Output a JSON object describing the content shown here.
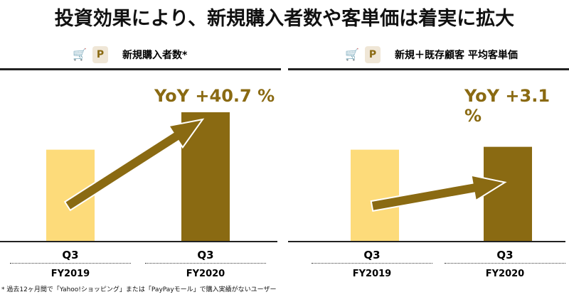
{
  "title": "投資効果により、新規購入者数や客単価は着実に拡大",
  "footnote": "* 過去12ヶ月間で「Yahoo!ショッピング」または「PayPayモール」で購入実績がないユーザー",
  "colors": {
    "fy2019": "#fddb7a",
    "fy2020": "#8a6a12",
    "arrow": "#8a6a12"
  },
  "chart_data": [
    {
      "type": "bar",
      "title": "新規購入者数*",
      "categories": [
        "Q3 FY2019",
        "Q3 FY2020"
      ],
      "quarter_labels": [
        "Q3",
        "Q3"
      ],
      "year_labels": [
        "FY2019",
        "FY2020"
      ],
      "values": [
        100,
        140.7
      ],
      "annotation": "YoY +40.7 %",
      "ylim": [
        0,
        150
      ]
    },
    {
      "type": "bar",
      "title": "新規＋既存顧客 平均客単価",
      "categories": [
        "Q3 FY2019",
        "Q3 FY2020"
      ],
      "quarter_labels": [
        "Q3",
        "Q3"
      ],
      "year_labels": [
        "FY2019",
        "FY2020"
      ],
      "values": [
        100,
        103.1
      ],
      "annotation": "YoY +3.1 %",
      "ylim": [
        0,
        150
      ]
    }
  ]
}
